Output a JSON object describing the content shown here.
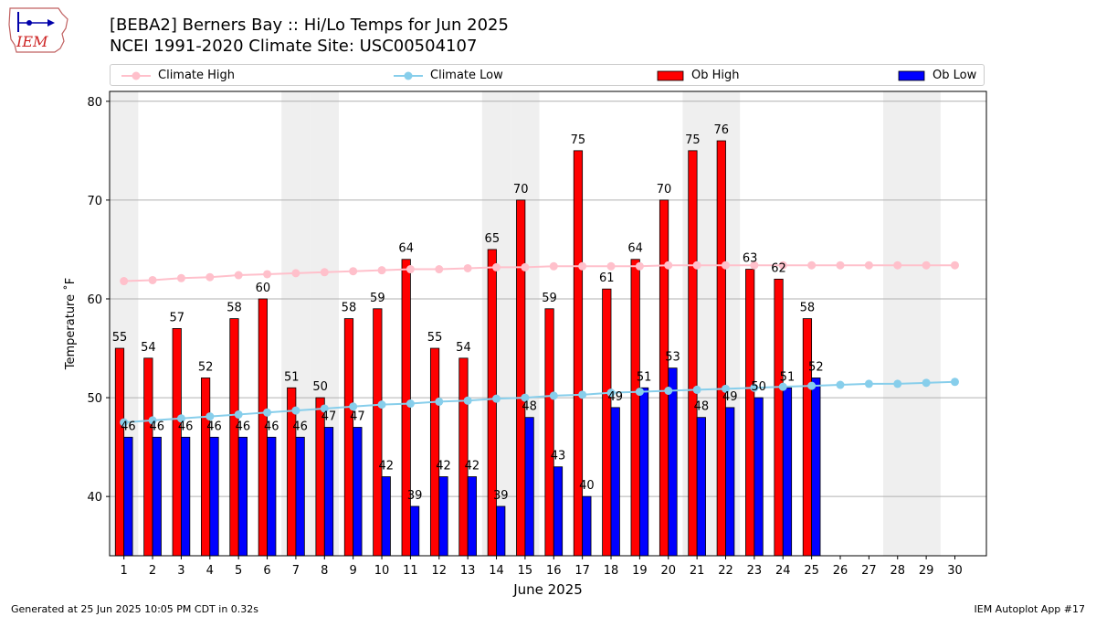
{
  "header": {
    "logo_text": "IEM",
    "title": "[BEBA2] Berners Bay :: Hi/Lo Temps for Jun 2025",
    "subtitle": "NCEI 1991-2020 Climate Site: USC00504107"
  },
  "legend": [
    {
      "label": "Climate High",
      "symbol": "line-marker",
      "color": "#ffc0cb"
    },
    {
      "label": "Climate Low",
      "symbol": "line-marker",
      "color": "#87ceeb"
    },
    {
      "label": "Ob High",
      "symbol": "box",
      "color": "#ff0000"
    },
    {
      "label": "Ob Low",
      "symbol": "box",
      "color": "#0000ff"
    }
  ],
  "chart_data": {
    "type": "bar",
    "xlabel": "June 2025",
    "ylabel": "Temperature ˚F",
    "ylim": [
      34,
      81
    ],
    "yticks": [
      40,
      50,
      60,
      70,
      80
    ],
    "grid": true,
    "legend_position": "top",
    "categories": [
      "1",
      "2",
      "3",
      "4",
      "5",
      "6",
      "7",
      "8",
      "9",
      "10",
      "11",
      "12",
      "13",
      "14",
      "15",
      "16",
      "17",
      "18",
      "19",
      "20",
      "21",
      "22",
      "23",
      "24",
      "25",
      "26",
      "27",
      "28",
      "29",
      "30"
    ],
    "weekend_days": [
      1,
      7,
      8,
      14,
      15,
      21,
      22,
      28,
      29
    ],
    "series": [
      {
        "name": "Ob High",
        "kind": "bar",
        "color": "#ff0000",
        "values": [
          55,
          54,
          57,
          52,
          58,
          60,
          51,
          50,
          58,
          59,
          64,
          55,
          54,
          65,
          70,
          59,
          75,
          61,
          64,
          70,
          75,
          76,
          63,
          62,
          58,
          null,
          null,
          null,
          null,
          null
        ]
      },
      {
        "name": "Ob Low",
        "kind": "bar",
        "color": "#0000ff",
        "values": [
          46,
          46,
          46,
          46,
          46,
          46,
          46,
          47,
          47,
          42,
          39,
          42,
          42,
          39,
          48,
          43,
          40,
          49,
          51,
          53,
          48,
          49,
          50,
          51,
          52,
          null,
          null,
          null,
          null,
          null
        ]
      },
      {
        "name": "Climate High",
        "kind": "line",
        "color": "#ffc0cb",
        "values": [
          61.8,
          61.9,
          62.1,
          62.2,
          62.4,
          62.5,
          62.6,
          62.7,
          62.8,
          62.9,
          63.0,
          63.0,
          63.1,
          63.2,
          63.2,
          63.3,
          63.3,
          63.3,
          63.3,
          63.4,
          63.4,
          63.4,
          63.4,
          63.4,
          63.4,
          63.4,
          63.4,
          63.4,
          63.4,
          63.4
        ]
      },
      {
        "name": "Climate Low",
        "kind": "line",
        "color": "#87ceeb",
        "values": [
          47.5,
          47.7,
          47.9,
          48.1,
          48.3,
          48.5,
          48.7,
          48.9,
          49.1,
          49.3,
          49.4,
          49.6,
          49.7,
          49.9,
          50.0,
          50.2,
          50.3,
          50.5,
          50.6,
          50.7,
          50.8,
          50.9,
          51.0,
          51.1,
          51.2,
          51.3,
          51.4,
          51.4,
          51.5,
          51.6
        ]
      }
    ]
  },
  "footer": {
    "left": "Generated at 25 Jun 2025 10:05 PM CDT in 0.32s",
    "right": "IEM Autoplot App #17"
  }
}
